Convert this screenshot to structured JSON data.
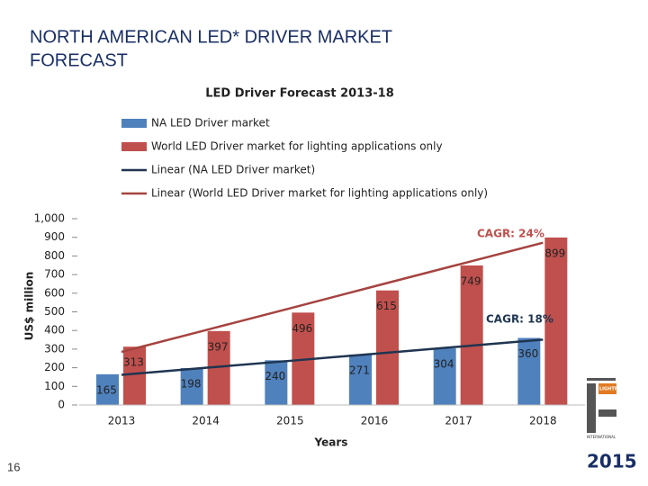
{
  "slide": {
    "title": "NORTH AMERICAN LED* DRIVER MARKET FORECAST",
    "page_number": "16"
  },
  "logo": {
    "name": "LIGHTFAIR",
    "sub": "INTERNATIONAL",
    "year": "2015"
  },
  "chart_data": {
    "type": "bar",
    "title": "LED Driver Forecast 2013-18",
    "x_label": "Years",
    "y_label": "US$ million",
    "categories": [
      "2013",
      "2014",
      "2015",
      "2016",
      "2017",
      "2018"
    ],
    "series": [
      {
        "name": "NA LED Driver market",
        "type": "bar",
        "color": "#4f81bd",
        "values": [
          165,
          198,
          240,
          271,
          304,
          360
        ]
      },
      {
        "name": "World LED Driver market for lighting applications only",
        "type": "bar",
        "color": "#c0504d",
        "values": [
          313,
          397,
          496,
          615,
          749,
          899
        ]
      },
      {
        "name": "Linear (NA LED Driver market)",
        "type": "line",
        "color": "#1f3550",
        "values": [
          162,
          200,
          237,
          275,
          313,
          351
        ]
      },
      {
        "name": "Linear (World LED Driver market for lighting applications only)",
        "type": "line",
        "color": "#a5433f",
        "values": [
          285,
          402,
          519,
          637,
          754,
          871
        ]
      }
    ],
    "annotations": [
      {
        "text": "CAGR: 24%",
        "color": "#c0504d"
      },
      {
        "text": "CAGR: 18%",
        "color": "#1f3550"
      }
    ],
    "ylim": [
      0,
      1000
    ],
    "yticks": [
      0,
      100,
      200,
      300,
      400,
      500,
      600,
      700,
      800,
      900,
      {
        "value": 1000,
        "label": "1,000"
      }
    ],
    "grid": false
  }
}
